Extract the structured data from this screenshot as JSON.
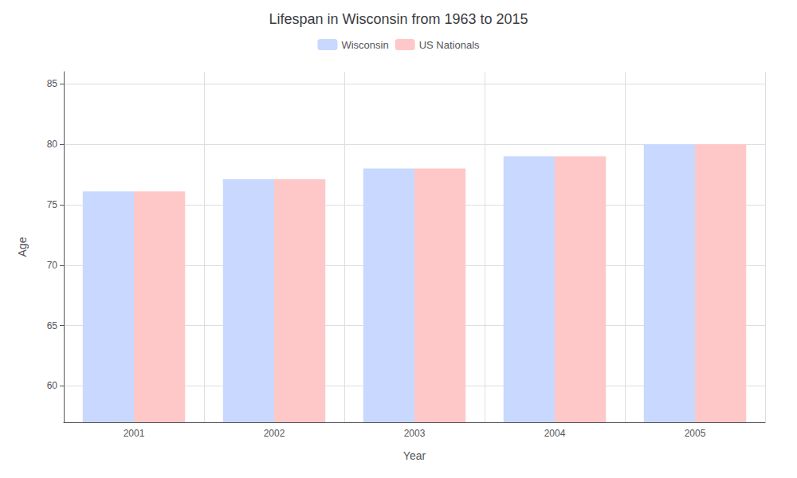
{
  "chart_data": {
    "type": "bar",
    "title": "Lifespan in Wisconsin from 1963 to 2015",
    "categories": [
      "2001",
      "2002",
      "2003",
      "2004",
      "2005"
    ],
    "series": [
      {
        "name": "Wisconsin",
        "color": "#c8d8ff",
        "values": [
          76.1,
          77.1,
          78.0,
          79.0,
          80.0
        ]
      },
      {
        "name": "US Nationals",
        "color": "#ffc8c8",
        "values": [
          76.1,
          77.1,
          78.0,
          79.0,
          80.0
        ]
      }
    ],
    "xlabel": "Year",
    "ylabel": "Age",
    "ylim": [
      57,
      86
    ],
    "yticks": [
      60,
      65,
      70,
      75,
      80,
      85
    ],
    "grid": true,
    "legend": "top"
  }
}
